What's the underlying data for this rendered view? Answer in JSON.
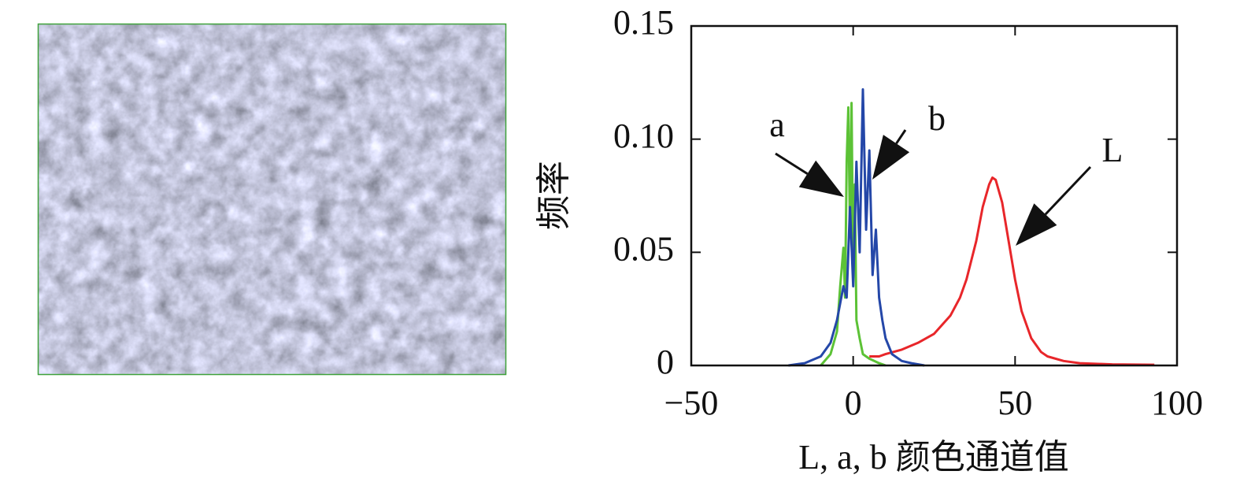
{
  "chart_data": {
    "type": "line",
    "xlabel": "L, a, b 颜色通道值",
    "ylabel": "频率",
    "xlim": [
      -50,
      100
    ],
    "ylim": [
      0,
      0.15
    ],
    "xticks": [
      {
        "value": -50,
        "label": "−50"
      },
      0,
      50,
      100
    ],
    "yticks": [
      0,
      0.05,
      {
        "value": 0.1,
        "label": "0.10"
      },
      0.15
    ],
    "grid": false,
    "series": [
      {
        "name": "L",
        "color": "#e8262a",
        "x": [
          5,
          8,
          10,
          15,
          20,
          25,
          30,
          33,
          35,
          38,
          40,
          42,
          43,
          44,
          46,
          48,
          50,
          52,
          55,
          58,
          60,
          65,
          70,
          80,
          93
        ],
        "values": [
          0.004,
          0.004,
          0.005,
          0.007,
          0.01,
          0.014,
          0.022,
          0.03,
          0.038,
          0.055,
          0.07,
          0.08,
          0.083,
          0.082,
          0.072,
          0.055,
          0.038,
          0.024,
          0.012,
          0.006,
          0.004,
          0.002,
          0.001,
          0.0005,
          0.0003
        ]
      },
      {
        "name": "a",
        "color": "#5cc236",
        "x": [
          -10,
          -7,
          -5,
          -4,
          -3,
          -2.5,
          -2,
          -1.5,
          -1,
          -0.5,
          0,
          0.5,
          1,
          2,
          3,
          5,
          8,
          10
        ],
        "values": [
          0,
          0.005,
          0.015,
          0.035,
          0.052,
          0.03,
          0.09,
          0.114,
          0.06,
          0.116,
          0.04,
          0.08,
          0.02,
          0.012,
          0.005,
          0.003,
          0.001,
          0
        ]
      },
      {
        "name": "b",
        "color": "#2447a8",
        "x": [
          -20,
          -15,
          -10,
          -7,
          -5,
          -3,
          -2,
          -1,
          0,
          1,
          2,
          3,
          4,
          5,
          6,
          7,
          8,
          9,
          10,
          12,
          15,
          18,
          22
        ],
        "values": [
          0,
          0.001,
          0.004,
          0.01,
          0.02,
          0.035,
          0.03,
          0.07,
          0.035,
          0.09,
          0.05,
          0.122,
          0.06,
          0.095,
          0.04,
          0.06,
          0.03,
          0.02,
          0.012,
          0.005,
          0.002,
          0.001,
          0
        ]
      }
    ]
  }
}
